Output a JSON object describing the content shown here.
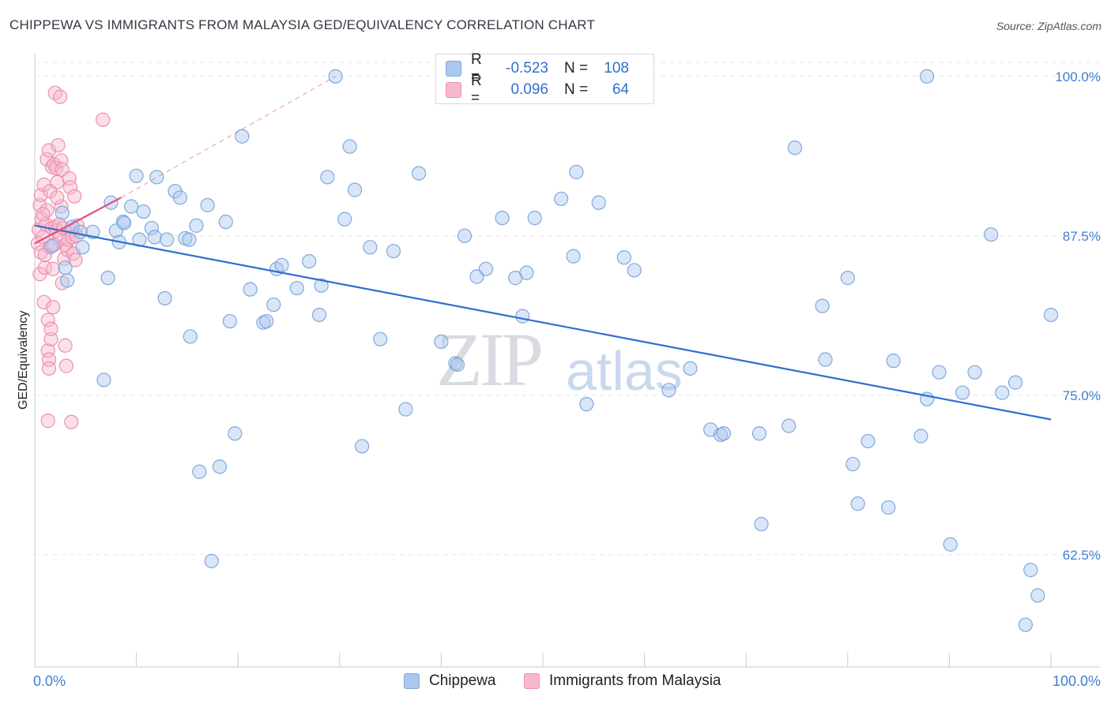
{
  "header": {
    "title": "CHIPPEWA VS IMMIGRANTS FROM MALAYSIA GED/EQUIVALENCY CORRELATION CHART",
    "source": "Source: ZipAtlas.com"
  },
  "watermark": {
    "zip": "ZIP",
    "atlas": "atlas"
  },
  "legend": {
    "rows": [
      {
        "r_label": "R =",
        "r_value": "-0.523",
        "n_label": "N =",
        "n_value": "108"
      },
      {
        "r_label": "R =",
        "r_value": "0.096",
        "n_label": "N =",
        "n_value": "64"
      }
    ],
    "bottom": [
      "Chippewa",
      "Immigrants from Malaysia"
    ]
  },
  "colors": {
    "blue_fill": "#aac8ef",
    "blue_stroke": "#7fa8dc",
    "blue_line": "#2f6fcc",
    "pink_fill": "#f7b8cb",
    "pink_stroke": "#ee8fb0",
    "pink_line": "#e0507f"
  },
  "chart_data": {
    "type": "scatter",
    "title": "CHIPPEWA VS IMMIGRANTS FROM MALAYSIA GED/EQUIVALENCY CORRELATION CHART",
    "xlabel": "",
    "ylabel": "GED/Equivalency",
    "xlim": [
      0,
      100
    ],
    "ylim": [
      53.7,
      101.1
    ],
    "x_tick_labels": [
      "0.0%",
      "100.0%"
    ],
    "y_ticks": [
      100.0,
      87.5,
      75.0,
      62.5
    ],
    "y_tick_labels": [
      "100.0%",
      "87.5%",
      "75.0%",
      "62.5%"
    ],
    "series": [
      {
        "name": "Chippewa",
        "color": "blue",
        "trend": {
          "x": [
            0,
            100
          ],
          "y": [
            88.3,
            73.1
          ]
        },
        "points": [
          [
            1.7,
            86.7
          ],
          [
            2.7,
            89.3
          ],
          [
            3.2,
            84.0
          ],
          [
            3.7,
            88.2
          ],
          [
            4.5,
            87.8
          ],
          [
            4.7,
            86.6
          ],
          [
            5.7,
            87.8
          ],
          [
            6.8,
            76.2
          ],
          [
            7.2,
            84.2
          ],
          [
            7.5,
            90.1
          ],
          [
            8.0,
            87.9
          ],
          [
            8.3,
            87.0
          ],
          [
            8.7,
            88.6
          ],
          [
            9.5,
            89.8
          ],
          [
            10.0,
            92.2
          ],
          [
            10.3,
            87.2
          ],
          [
            10.7,
            89.4
          ],
          [
            11.5,
            88.1
          ],
          [
            11.8,
            87.4
          ],
          [
            12.0,
            92.1
          ],
          [
            12.8,
            82.6
          ],
          [
            13.0,
            87.2
          ],
          [
            13.8,
            91.0
          ],
          [
            14.3,
            90.5
          ],
          [
            14.8,
            87.3
          ],
          [
            15.3,
            79.6
          ],
          [
            15.9,
            88.3
          ],
          [
            16.2,
            69.0
          ],
          [
            17.0,
            89.9
          ],
          [
            17.4,
            62.0
          ],
          [
            18.2,
            69.4
          ],
          [
            18.8,
            88.6
          ],
          [
            19.7,
            72.0
          ],
          [
            20.4,
            95.3
          ],
          [
            21.2,
            83.3
          ],
          [
            22.5,
            80.7
          ],
          [
            22.8,
            80.8
          ],
          [
            23.5,
            82.1
          ],
          [
            23.8,
            84.9
          ],
          [
            24.3,
            85.2
          ],
          [
            25.8,
            83.4
          ],
          [
            27.0,
            85.5
          ],
          [
            28.0,
            81.3
          ],
          [
            28.2,
            83.6
          ],
          [
            28.8,
            92.1
          ],
          [
            30.5,
            88.8
          ],
          [
            31.0,
            94.5
          ],
          [
            31.5,
            91.1
          ],
          [
            32.2,
            71.0
          ],
          [
            33.0,
            86.6
          ],
          [
            34.0,
            79.4
          ],
          [
            36.5,
            73.9
          ],
          [
            37.8,
            92.4
          ],
          [
            40.0,
            79.2
          ],
          [
            41.4,
            77.5
          ],
          [
            41.6,
            77.4
          ],
          [
            42.3,
            87.5
          ],
          [
            43.5,
            84.3
          ],
          [
            44.4,
            84.9
          ],
          [
            46.0,
            88.9
          ],
          [
            47.3,
            84.2
          ],
          [
            48.0,
            81.2
          ],
          [
            48.4,
            84.6
          ],
          [
            49.2,
            88.9
          ],
          [
            51.8,
            90.4
          ],
          [
            53.0,
            85.9
          ],
          [
            53.3,
            92.5
          ],
          [
            54.3,
            74.3
          ],
          [
            55.5,
            90.1
          ],
          [
            58.0,
            85.8
          ],
          [
            59.0,
            84.8
          ],
          [
            62.4,
            75.4
          ],
          [
            64.5,
            77.1
          ],
          [
            66.5,
            72.3
          ],
          [
            67.5,
            71.9
          ],
          [
            67.8,
            72.0
          ],
          [
            71.3,
            72.0
          ],
          [
            71.5,
            64.9
          ],
          [
            74.2,
            72.6
          ],
          [
            74.8,
            94.4
          ],
          [
            77.5,
            82.0
          ],
          [
            77.8,
            77.8
          ],
          [
            80.0,
            84.2
          ],
          [
            80.5,
            69.6
          ],
          [
            81.0,
            66.5
          ],
          [
            82.0,
            71.4
          ],
          [
            84.0,
            66.2
          ],
          [
            84.5,
            77.7
          ],
          [
            87.2,
            71.8
          ],
          [
            87.8,
            74.7
          ],
          [
            87.8,
            100.0
          ],
          [
            89.0,
            76.8
          ],
          [
            90.1,
            63.3
          ],
          [
            91.3,
            75.2
          ],
          [
            92.5,
            76.8
          ],
          [
            94.1,
            87.6
          ],
          [
            95.2,
            75.2
          ],
          [
            96.5,
            76.0
          ],
          [
            97.5,
            57.0
          ],
          [
            98.0,
            61.3
          ],
          [
            98.7,
            59.3
          ],
          [
            100.0,
            81.3
          ],
          [
            3.0,
            85.0
          ],
          [
            8.8,
            88.5
          ],
          [
            15.2,
            87.2
          ],
          [
            19.2,
            80.8
          ],
          [
            35.3,
            86.3
          ],
          [
            29.6,
            100.0
          ]
        ]
      },
      {
        "name": "Immigrants from Malaysia",
        "color": "pink",
        "trend": {
          "x": [
            0,
            8.5
          ],
          "y": [
            86.9,
            90.5
          ]
        },
        "trend_ext": {
          "x": [
            8.5,
            29.6
          ],
          "y": [
            90.5,
            100.0
          ]
        },
        "points": [
          [
            0.3,
            86.9
          ],
          [
            0.4,
            88.0
          ],
          [
            0.5,
            89.9
          ],
          [
            0.5,
            84.5
          ],
          [
            0.6,
            86.2
          ],
          [
            0.6,
            90.7
          ],
          [
            0.7,
            88.8
          ],
          [
            0.8,
            87.4
          ],
          [
            0.9,
            91.5
          ],
          [
            0.9,
            82.3
          ],
          [
            1.0,
            85.0
          ],
          [
            1.0,
            86.0
          ],
          [
            1.1,
            88.4
          ],
          [
            1.2,
            89.5
          ],
          [
            1.2,
            93.5
          ],
          [
            1.3,
            80.9
          ],
          [
            1.3,
            78.5
          ],
          [
            1.4,
            94.2
          ],
          [
            1.4,
            77.8
          ],
          [
            1.5,
            91.0
          ],
          [
            1.5,
            86.6
          ],
          [
            1.6,
            79.4
          ],
          [
            1.6,
            80.2
          ],
          [
            1.7,
            88.1
          ],
          [
            1.7,
            92.9
          ],
          [
            1.8,
            81.9
          ],
          [
            1.8,
            84.9
          ],
          [
            1.9,
            93.1
          ],
          [
            2.0,
            98.7
          ],
          [
            2.0,
            88.2
          ],
          [
            2.1,
            87.9
          ],
          [
            2.1,
            92.8
          ],
          [
            2.2,
            91.7
          ],
          [
            2.3,
            94.6
          ],
          [
            2.4,
            87.3
          ],
          [
            2.4,
            88.4
          ],
          [
            2.5,
            98.4
          ],
          [
            2.6,
            93.4
          ],
          [
            2.6,
            89.8
          ],
          [
            2.7,
            92.7
          ],
          [
            2.8,
            88.1
          ],
          [
            2.9,
            85.7
          ],
          [
            3.0,
            86.8
          ],
          [
            3.0,
            78.9
          ],
          [
            3.1,
            77.3
          ],
          [
            3.2,
            86.4
          ],
          [
            3.3,
            87.2
          ],
          [
            3.4,
            92.0
          ],
          [
            3.5,
            91.3
          ],
          [
            3.6,
            87.9
          ],
          [
            3.7,
            87.4
          ],
          [
            3.8,
            86.1
          ],
          [
            3.9,
            90.6
          ],
          [
            4.0,
            85.6
          ],
          [
            4.1,
            87.5
          ],
          [
            4.2,
            88.3
          ],
          [
            1.3,
            73.0
          ],
          [
            3.6,
            72.9
          ],
          [
            6.7,
            96.6
          ],
          [
            1.4,
            77.1
          ],
          [
            0.8,
            89.2
          ],
          [
            2.2,
            90.5
          ],
          [
            1.9,
            86.8
          ],
          [
            2.7,
            83.8
          ]
        ]
      }
    ]
  }
}
